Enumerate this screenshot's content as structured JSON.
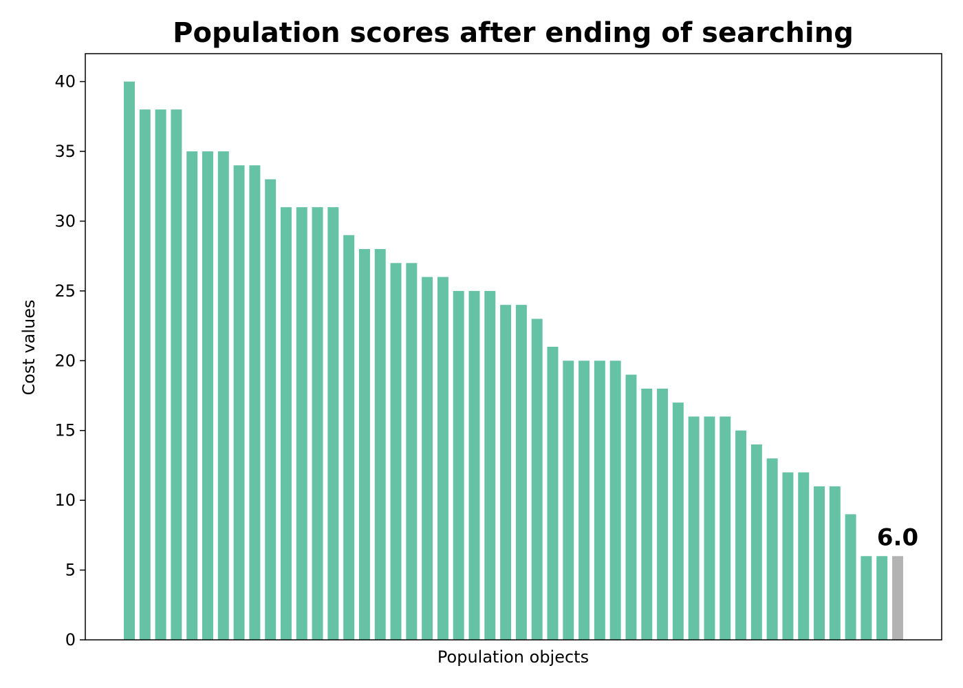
{
  "chart_data": {
    "type": "bar",
    "title": "Population scores after ending of searching",
    "xlabel": "Population objects",
    "ylabel": "Cost values",
    "ylim": [
      0,
      42
    ],
    "yticks": [
      0,
      5,
      10,
      15,
      20,
      25,
      30,
      35,
      40
    ],
    "values": [
      40,
      38,
      38,
      38,
      35,
      35,
      35,
      34,
      34,
      33,
      31,
      31,
      31,
      31,
      29,
      28,
      28,
      27,
      27,
      26,
      26,
      25,
      25,
      25,
      24,
      24,
      23,
      21,
      20,
      20,
      20,
      20,
      19,
      18,
      18,
      17,
      16,
      16,
      16,
      15,
      14,
      13,
      12,
      12,
      11,
      11,
      9,
      6,
      6,
      6
    ],
    "highlight_index": 49,
    "annotation": "6.0",
    "grid": false,
    "colors": {
      "bar": "#66c2a5",
      "highlight": "#b3b3b3",
      "axis": "#000000"
    }
  }
}
